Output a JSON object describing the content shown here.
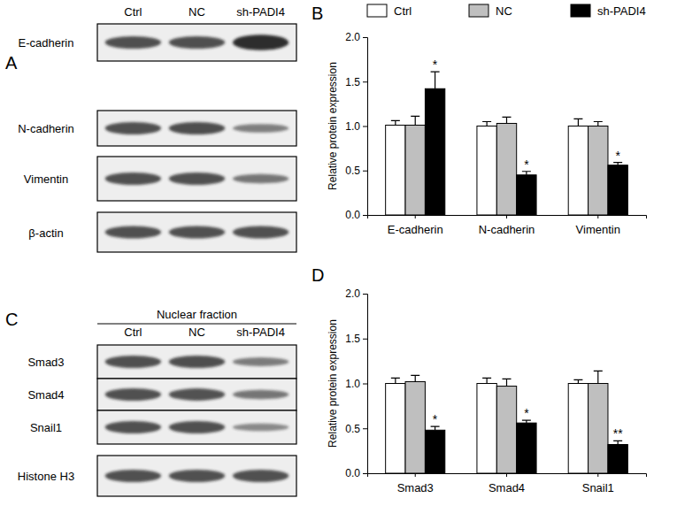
{
  "chart_data": [
    {
      "type": "bar",
      "title": "B",
      "y_label": "Relative protein expression",
      "categories": [
        "E-cadherin",
        "N-cadherin",
        "Vimentin"
      ],
      "series": [
        {
          "name": "Ctrl",
          "color": "#ffffff",
          "values": [
            1.01,
            1.0,
            1.0
          ],
          "errors": [
            0.05,
            0.05,
            0.08
          ]
        },
        {
          "name": "NC",
          "color": "#bfbfbf",
          "values": [
            1.01,
            1.03,
            1.0
          ],
          "errors": [
            0.1,
            0.07,
            0.05
          ]
        },
        {
          "name": "sh-PADI4",
          "color": "#000000",
          "values": [
            1.42,
            0.45,
            0.56
          ],
          "errors": [
            0.19,
            0.04,
            0.03
          ],
          "significance": [
            "*",
            "*",
            "*"
          ]
        }
      ],
      "ylim": [
        0,
        2
      ],
      "yticks": [
        {
          "value": 0,
          "label": "0.0"
        },
        {
          "value": 0.5,
          "label": "0.5"
        },
        {
          "value": 1,
          "label": "1.0"
        },
        {
          "value": 1.5,
          "label": "1.5"
        },
        {
          "value": 2,
          "label": "2.0"
        }
      ],
      "legend": "top"
    },
    {
      "type": "bar",
      "title": "D",
      "y_label": "Relative protein expression",
      "categories": [
        "Smad3",
        "Smad4",
        "Snail1"
      ],
      "series": [
        {
          "name": "Ctrl",
          "color": "#ffffff",
          "values": [
            1.0,
            1.0,
            1.0
          ],
          "errors": [
            0.06,
            0.06,
            0.04
          ]
        },
        {
          "name": "NC",
          "color": "#bfbfbf",
          "values": [
            1.02,
            0.97,
            1.0
          ],
          "errors": [
            0.07,
            0.08,
            0.14
          ]
        },
        {
          "name": "sh-PADI4",
          "color": "#000000",
          "values": [
            0.48,
            0.56,
            0.32
          ],
          "errors": [
            0.04,
            0.03,
            0.04
          ],
          "significance": [
            "*",
            "*",
            "**"
          ]
        }
      ],
      "ylim": [
        0,
        2
      ],
      "yticks": [
        {
          "value": 0,
          "label": "0.0"
        },
        {
          "value": 0.5,
          "label": "0.5"
        },
        {
          "value": 1,
          "label": "1.0"
        },
        {
          "value": 1.5,
          "label": "1.5"
        },
        {
          "value": 2,
          "label": "2.0"
        }
      ]
    }
  ],
  "blots": [
    {
      "panel": "A",
      "lanes": [
        "Ctrl",
        "NC",
        "sh-PADI4"
      ],
      "rows": [
        "E-cadherin",
        "N-cadherin",
        "Vimentin",
        "β-actin"
      ]
    },
    {
      "panel": "C",
      "header": "Nuclear fraction",
      "lanes": [
        "Ctrl",
        "NC",
        "sh-PADI4"
      ],
      "rows": [
        "Smad3",
        "Smad4",
        "Snail1",
        "Histone H3"
      ]
    }
  ]
}
